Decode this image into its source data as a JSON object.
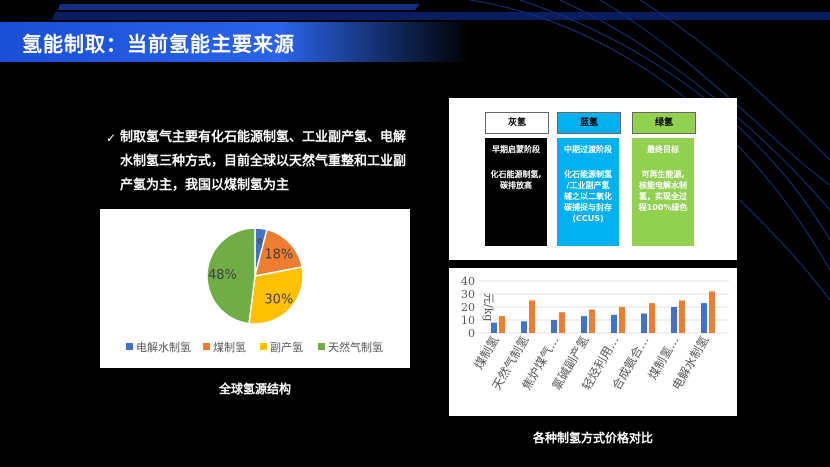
{
  "title": "氢能制取：当前氢能主要来源",
  "bullet": {
    "line1": "制取氢气主要有化石能源制氢、工业副产氢、电解",
    "line2": "水制氢三种方式，目前全球以天然气重整和工业副",
    "line3": "产氢为主，我国以煤制氢为主"
  },
  "pie": {
    "caption": "全球氢源结构",
    "chart_data": {
      "type": "pie",
      "labels": [
        "电解水制氢",
        "煤制氢",
        "副产氢",
        "天然气制氢"
      ],
      "values": [
        4,
        18,
        30,
        48
      ],
      "value_labels": [
        "4%",
        "18%",
        "30%",
        "48%"
      ],
      "colors": [
        "#4472c4",
        "#ed7d31",
        "#ffc000",
        "#70ad47"
      ],
      "legend": "bottom"
    }
  },
  "stages": [
    {
      "head": "灰氢",
      "stage": "早期启蒙阶段",
      "desc": [
        "化石能源制氢,",
        "碳排放高"
      ],
      "color": "#000000",
      "text_color": "#ffffff"
    },
    {
      "head": "蓝氢",
      "stage": "中期过渡阶段",
      "desc": [
        "化石能源制氢",
        "/工业副产氢",
        "辅之以二氧化",
        "碳捕捉与封存",
        "(CCUS)"
      ],
      "color": "#00b0f0",
      "text_color": "#ffffff"
    },
    {
      "head": "绿氢",
      "stage": "最终目标",
      "desc": [
        "可再生能源,",
        "核能电解水制",
        "氢，实现全过",
        "程100%绿色"
      ],
      "color": "#92d050",
      "text_color": "#ffffff"
    }
  ],
  "bar": {
    "caption": "各种制氢方式价格对比",
    "chart_data": {
      "type": "bar",
      "ylabel": "元/kg",
      "ylim": [
        0,
        40
      ],
      "yticks": [
        0,
        10,
        20,
        30,
        40
      ],
      "categories": [
        "煤制氢",
        "天然气制氢",
        "焦炉煤气…",
        "氯碱副产氢",
        "轻烃利用…",
        "合成氨合…",
        "煤制氢…",
        "电解水制氢"
      ],
      "series": [
        {
          "values": [
            8,
            9,
            10,
            13,
            14,
            15,
            20,
            23
          ],
          "color": "#4472c4"
        },
        {
          "values": [
            13,
            25,
            16,
            18,
            20,
            23,
            25,
            32
          ],
          "color": "#ed7d31"
        }
      ]
    }
  }
}
